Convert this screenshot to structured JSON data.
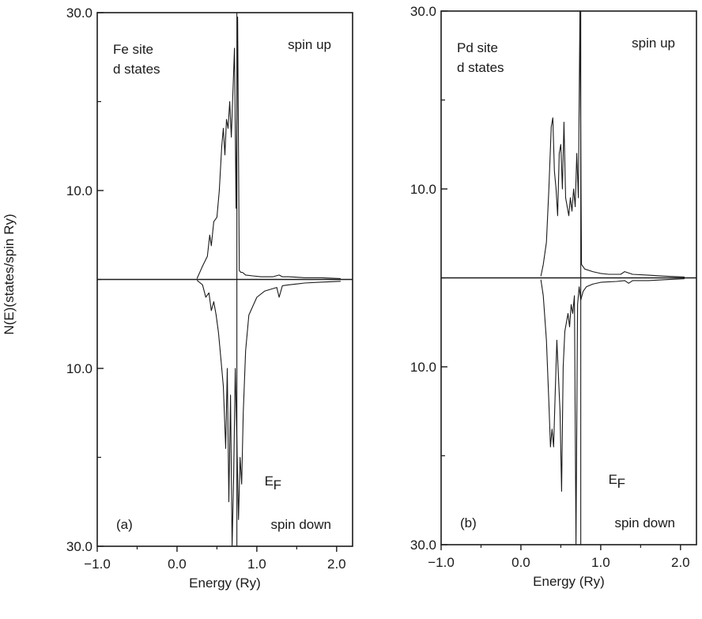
{
  "ylabel": "N(E)(states/spin Ry)",
  "chart_data": [
    {
      "type": "line",
      "panel_label": "(a)",
      "site_label": [
        "Fe site",
        "d states"
      ],
      "up_label": "spin up",
      "down_label": "spin down",
      "ef_label": "E",
      "ef_sub": "F",
      "ef_value": 0.75,
      "xlabel": "Energy (Ry)",
      "xlim": [
        -1.0,
        2.2
      ],
      "xticks": [
        -1.0,
        0.0,
        1.0,
        2.0
      ],
      "xtick_labels": [
        "−1.0",
        "0.0",
        "1.0",
        "2.0"
      ],
      "ylim": [
        -30,
        30
      ],
      "yticks": [
        30,
        10,
        -10,
        -30
      ],
      "ytick_labels": [
        "30.0",
        "10.0",
        "10.0",
        "30.0"
      ],
      "series": [
        {
          "role": "spin-up",
          "x": [
            0.25,
            0.32,
            0.38,
            0.41,
            0.43,
            0.46,
            0.5,
            0.53,
            0.56,
            0.58,
            0.6,
            0.62,
            0.64,
            0.66,
            0.68,
            0.7,
            0.72,
            0.74,
            0.76,
            0.78,
            0.8,
            0.82,
            0.86,
            0.95,
            1.05,
            1.2,
            1.28,
            1.32,
            1.4,
            1.6,
            1.8,
            2.05
          ],
          "y": [
            0.1,
            1.5,
            2.6,
            5.0,
            3.8,
            6.5,
            7.0,
            10.0,
            15.0,
            17.0,
            14.0,
            18.0,
            17.0,
            20.0,
            16.0,
            21.0,
            26.0,
            8.0,
            29.5,
            1.0,
            0.8,
            0.8,
            0.5,
            0.4,
            0.3,
            0.3,
            0.5,
            0.3,
            0.3,
            0.2,
            0.2,
            0.1
          ]
        },
        {
          "role": "spin-down",
          "x": [
            0.25,
            0.32,
            0.36,
            0.4,
            0.43,
            0.46,
            0.49,
            0.52,
            0.55,
            0.58,
            0.61,
            0.63,
            0.65,
            0.67,
            0.69,
            0.71,
            0.73,
            0.75,
            0.77,
            0.79,
            0.81,
            0.83,
            0.86,
            0.9,
            1.0,
            1.1,
            1.25,
            1.28,
            1.32,
            1.4,
            1.6,
            1.8,
            2.05
          ],
          "y": [
            -0.1,
            -0.6,
            -2.0,
            -1.5,
            -3.5,
            -2.5,
            -4.0,
            -6.0,
            -9.0,
            -12.0,
            -19.0,
            -10.0,
            -25.0,
            -13.0,
            -30.0,
            -22.0,
            -10.0,
            -18.0,
            -27.0,
            -20.0,
            -23.0,
            -15.0,
            -8.0,
            -4.0,
            -2.0,
            -1.3,
            -0.9,
            -2.0,
            -0.7,
            -0.6,
            -0.4,
            -0.3,
            -0.2
          ]
        }
      ]
    },
    {
      "type": "line",
      "panel_label": "(b)",
      "site_label": [
        "Pd site",
        "d states"
      ],
      "up_label": "spin up",
      "down_label": "spin down",
      "ef_label": "E",
      "ef_sub": "F",
      "ef_value": 0.75,
      "xlabel": "Energy (Ry)",
      "xlim": [
        -1.0,
        2.2
      ],
      "xticks": [
        -1.0,
        0.0,
        1.0,
        2.0
      ],
      "xtick_labels": [
        "−1.0",
        "0.0",
        "1.0",
        "2.0"
      ],
      "ylim": [
        -30,
        30
      ],
      "yticks": [
        30,
        10,
        -10,
        -30
      ],
      "ytick_labels": [
        "30.0",
        "10.0",
        "10.0",
        "30.0"
      ],
      "series": [
        {
          "role": "spin-up",
          "x": [
            0.25,
            0.28,
            0.32,
            0.35,
            0.38,
            0.4,
            0.42,
            0.44,
            0.46,
            0.48,
            0.5,
            0.52,
            0.54,
            0.56,
            0.58,
            0.6,
            0.62,
            0.64,
            0.66,
            0.68,
            0.7,
            0.72,
            0.74,
            0.76,
            0.8,
            0.9,
            1.0,
            1.1,
            1.25,
            1.3,
            1.4,
            1.6,
            1.8,
            2.05
          ],
          "y": [
            0.2,
            1.5,
            4.0,
            10.0,
            17.0,
            18.0,
            12.0,
            10.0,
            7.0,
            14.0,
            15.0,
            10.0,
            17.5,
            9.0,
            8.0,
            7.0,
            9.0,
            7.5,
            10.0,
            8.0,
            14.0,
            9.0,
            30.0,
            1.5,
            1.0,
            0.7,
            0.5,
            0.4,
            0.4,
            0.7,
            0.4,
            0.3,
            0.2,
            0.1
          ]
        },
        {
          "role": "spin-down",
          "x": [
            0.25,
            0.28,
            0.32,
            0.35,
            0.37,
            0.39,
            0.41,
            0.43,
            0.45,
            0.47,
            0.49,
            0.51,
            0.53,
            0.55,
            0.57,
            0.59,
            0.61,
            0.63,
            0.65,
            0.67,
            0.69,
            0.71,
            0.73,
            0.75,
            0.78,
            0.82,
            0.9,
            1.0,
            1.2,
            1.3,
            1.35,
            1.4,
            1.6,
            1.8,
            2.05
          ],
          "y": [
            -0.2,
            -2.0,
            -7.0,
            -14.0,
            -19.0,
            -17.0,
            -19.0,
            -13.0,
            -7.0,
            -11.0,
            -15.0,
            -24.0,
            -10.0,
            -6.0,
            -5.0,
            -4.0,
            -5.5,
            -3.0,
            -4.0,
            -2.0,
            -30.0,
            -3.0,
            -1.0,
            -2.5,
            -1.5,
            -1.0,
            -0.7,
            -0.5,
            -0.4,
            -0.3,
            -0.6,
            -0.3,
            -0.3,
            -0.2,
            -0.1
          ]
        }
      ]
    }
  ]
}
